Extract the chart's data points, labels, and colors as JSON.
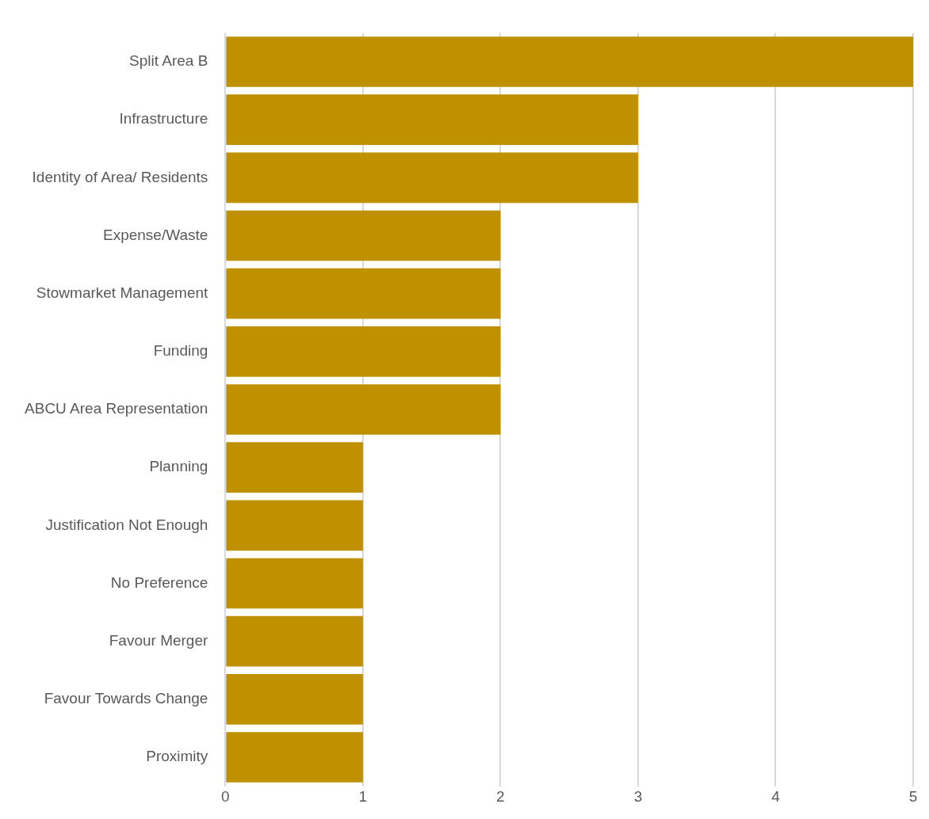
{
  "chart_data": {
    "type": "bar",
    "orientation": "horizontal",
    "categories": [
      "Split Area B",
      "Infrastructure",
      "Identity of Area/ Residents",
      "Expense/Waste",
      "Stowmarket Management",
      "Funding",
      "ABCU Area Representation",
      "Planning",
      "Justification Not Enough",
      "No Preference",
      "Favour Merger",
      "Favour Towards Change",
      "Proximity"
    ],
    "values": [
      5,
      3,
      3,
      2,
      2,
      2,
      2,
      1,
      1,
      1,
      1,
      1,
      1
    ],
    "color": "#bf9000",
    "xlim": [
      0,
      5
    ],
    "xticks": [
      0,
      1,
      2,
      3,
      4,
      5
    ],
    "grid": "x"
  }
}
